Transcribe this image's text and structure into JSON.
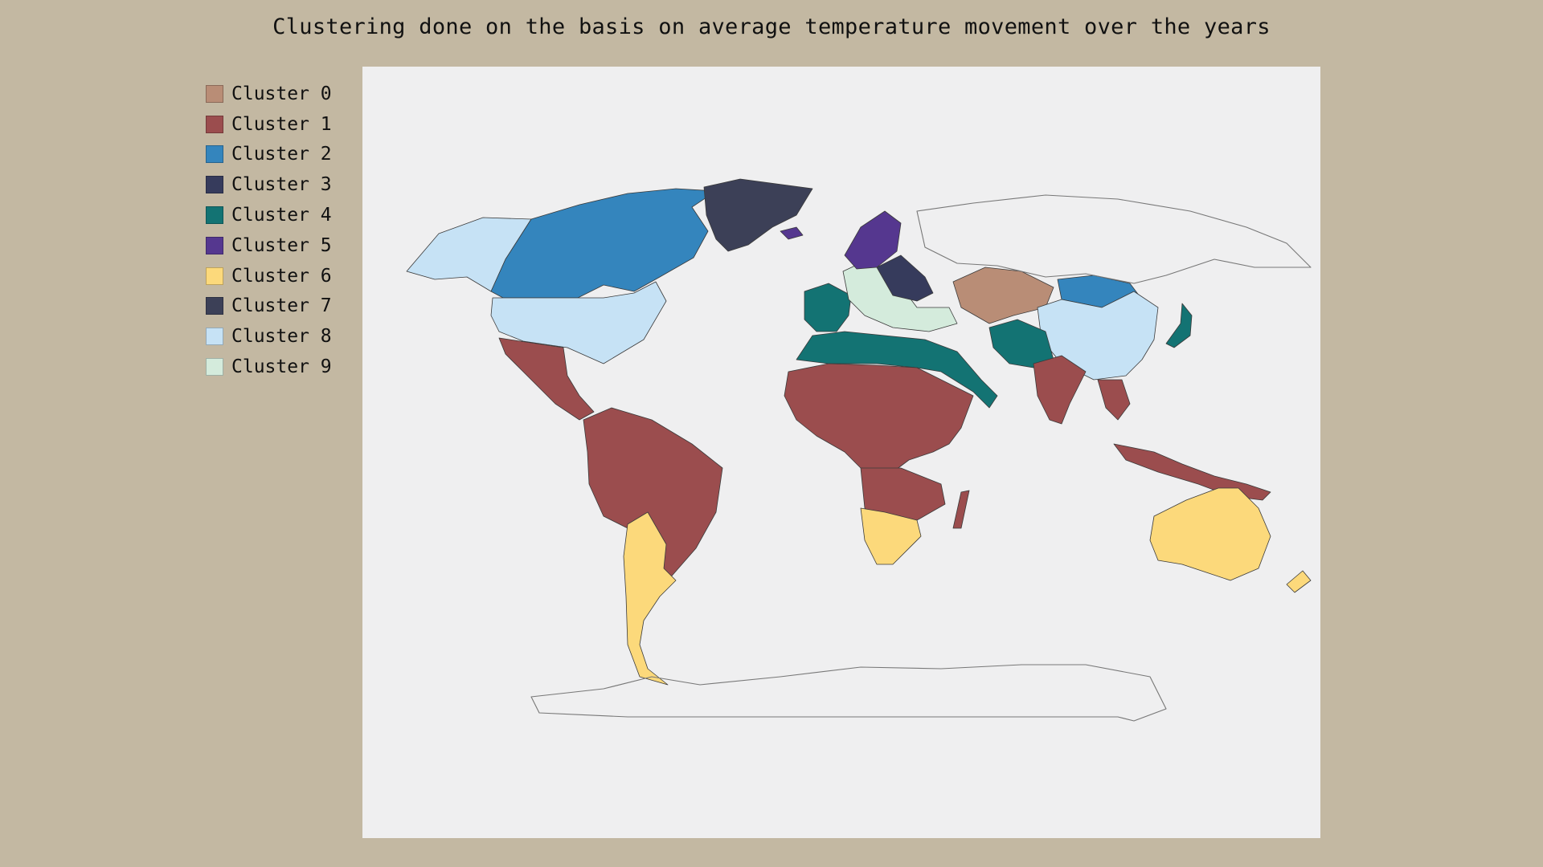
{
  "title": "Clustering done on the basis on average temperature movement over the years",
  "legend": [
    {
      "label": "Cluster 0",
      "color": "#b98d76"
    },
    {
      "label": "Cluster 1",
      "color": "#9b4d4e"
    },
    {
      "label": "Cluster 2",
      "color": "#3485bd"
    },
    {
      "label": "Cluster 3",
      "color": "#363b5c"
    },
    {
      "label": "Cluster 4",
      "color": "#137373"
    },
    {
      "label": "Cluster 5",
      "color": "#55378f"
    },
    {
      "label": "Cluster 6",
      "color": "#fcd97b"
    },
    {
      "label": "Cluster 7",
      "color": "#3c4057"
    },
    {
      "label": "Cluster 8",
      "color": "#c6e2f5"
    },
    {
      "label": "Cluster 9",
      "color": "#d4ebdc"
    }
  ]
}
